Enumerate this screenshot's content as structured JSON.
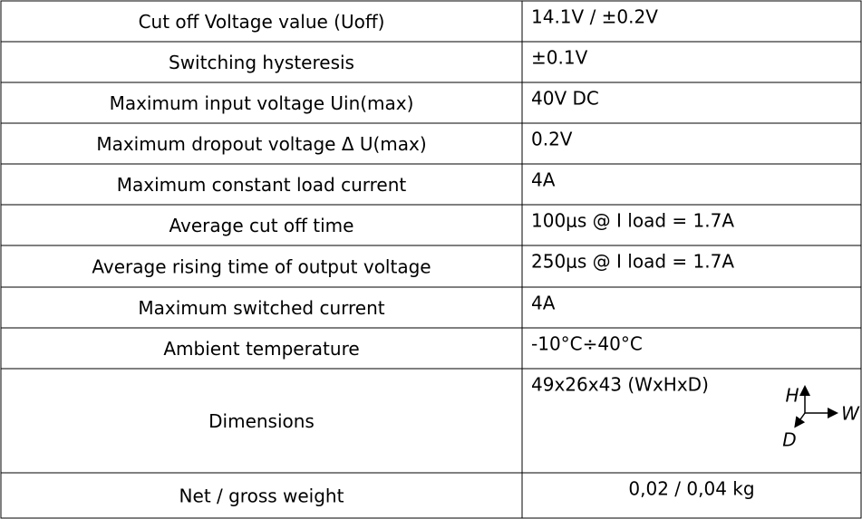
{
  "table": {
    "rows": [
      [
        "Cut off Voltage value (Uoff)",
        "14.1V / ±0.2V"
      ],
      [
        "Switching hysteresis",
        "±0.1V"
      ],
      [
        "Maximum input voltage Uin(max)",
        "40V DC"
      ],
      [
        "Maximum dropout voltage  Δ U(max)",
        "0.2V"
      ],
      [
        "Maximum constant load current",
        "4A"
      ],
      [
        "Average cut off time",
        "100μs @ I load = 1.7A"
      ],
      [
        "Average rising time of output voltage",
        "250μs @ I load = 1.7A"
      ],
      [
        "Maximum switched current",
        "4A"
      ],
      [
        "Ambient temperature",
        "-10°C÷40°C"
      ],
      [
        "Dimensions",
        "49x26x43 (WxHxD)"
      ],
      [
        "Net / gross weight",
        "0,02 / 0,04 kg"
      ]
    ]
  },
  "axes": {
    "h": "H",
    "w": "W",
    "d": "D"
  }
}
